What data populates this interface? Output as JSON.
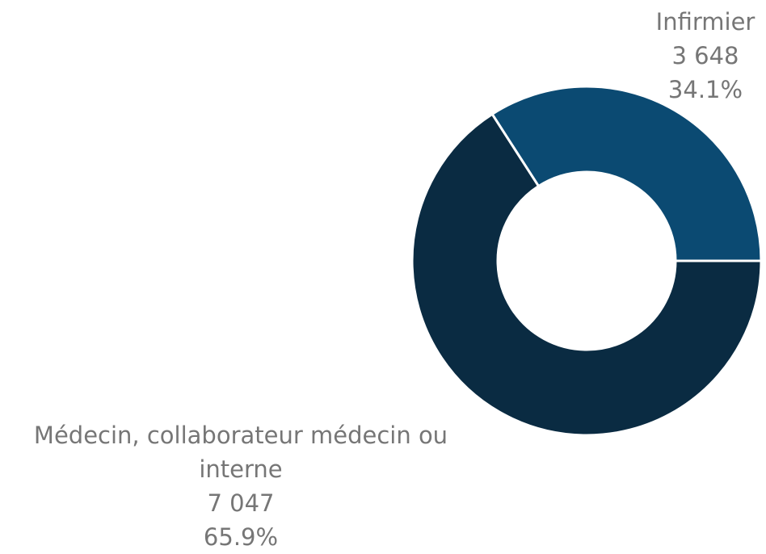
{
  "chart_data": {
    "type": "donut",
    "categories": [
      "Infirmier",
      "Médecin, collaborateur médecin ou interne"
    ],
    "values": [
      3648,
      7047
    ],
    "value_labels": [
      "3 648",
      "7 047"
    ],
    "percentages": [
      34.1,
      65.9
    ],
    "percentage_labels": [
      "34.1%",
      "65.9%"
    ],
    "colors": [
      "#0b4a72",
      "#0a2b42"
    ]
  }
}
